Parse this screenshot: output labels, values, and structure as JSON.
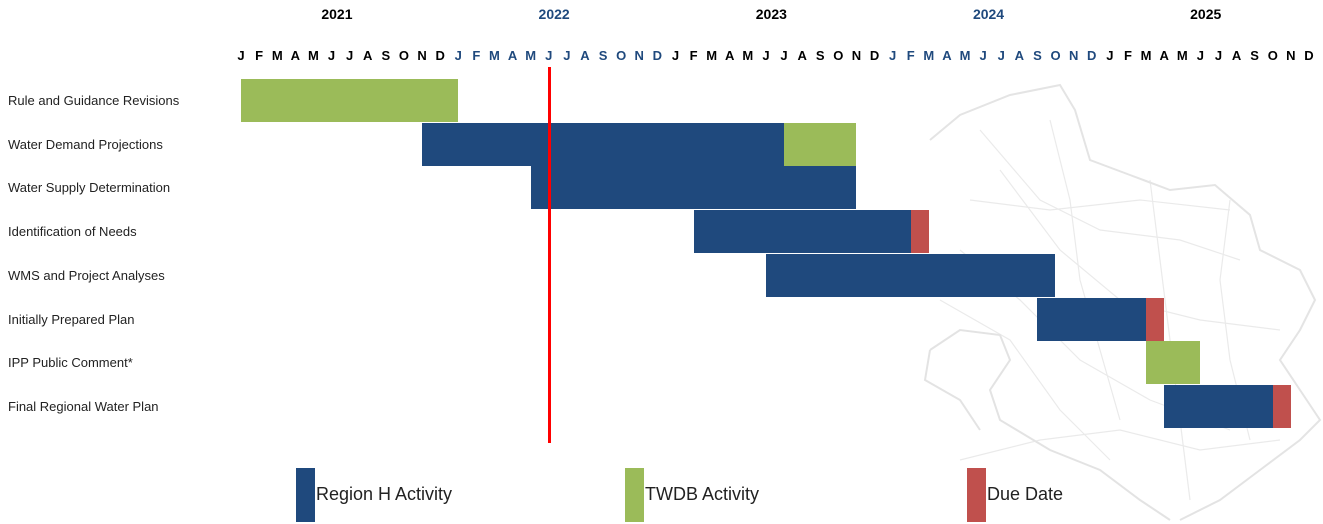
{
  "colors": {
    "region_h": "#1f497d",
    "twdb": "#9bbb59",
    "due": "#c0504d",
    "today": "#ff0000",
    "year_dark": "#000000",
    "year_blue": "#1f497d"
  },
  "chart_data": {
    "type": "gantt",
    "years": [
      "2021",
      "2022",
      "2023",
      "2024",
      "2025"
    ],
    "month_letters": [
      "J",
      "F",
      "M",
      "A",
      "M",
      "J",
      "J",
      "A",
      "S",
      "O",
      "N",
      "D"
    ],
    "tasks": [
      "Rule and Guidance Revisions",
      "Water Demand Projections",
      "Water Supply Determination",
      "Identification of Needs",
      "WMS and Project Analyses",
      "Initially Prepared Plan",
      "IPP Public Comment*",
      "Final Regional Water Plan"
    ],
    "segments": [
      {
        "task": 0,
        "kind": "twdb",
        "start": "2021-01",
        "end": "2021-12"
      },
      {
        "task": 1,
        "kind": "region_h",
        "start": "2021-11",
        "end": "2023-06"
      },
      {
        "task": 1,
        "kind": "twdb",
        "start": "2023-07",
        "end": "2023-10"
      },
      {
        "task": 2,
        "kind": "region_h",
        "start": "2022-05",
        "end": "2023-10"
      },
      {
        "task": 3,
        "kind": "region_h",
        "start": "2023-02",
        "end": "2024-01"
      },
      {
        "task": 3,
        "kind": "due",
        "start": "2024-02",
        "end": "2024-02"
      },
      {
        "task": 4,
        "kind": "region_h",
        "start": "2023-06",
        "end": "2024-09"
      },
      {
        "task": 5,
        "kind": "region_h",
        "start": "2024-09",
        "end": "2025-02"
      },
      {
        "task": 5,
        "kind": "due",
        "start": "2025-03",
        "end": "2025-03"
      },
      {
        "task": 6,
        "kind": "twdb",
        "start": "2025-03",
        "end": "2025-05"
      },
      {
        "task": 7,
        "kind": "region_h",
        "start": "2025-04",
        "end": "2025-09"
      },
      {
        "task": 7,
        "kind": "due",
        "start": "2025-10",
        "end": "2025-10"
      }
    ],
    "today_marker": "2022-06",
    "legend": [
      {
        "kind": "region_h",
        "label": "Region H Activity"
      },
      {
        "kind": "twdb",
        "label": "TWDB Activity"
      },
      {
        "kind": "due",
        "label": "Due Date"
      }
    ]
  }
}
